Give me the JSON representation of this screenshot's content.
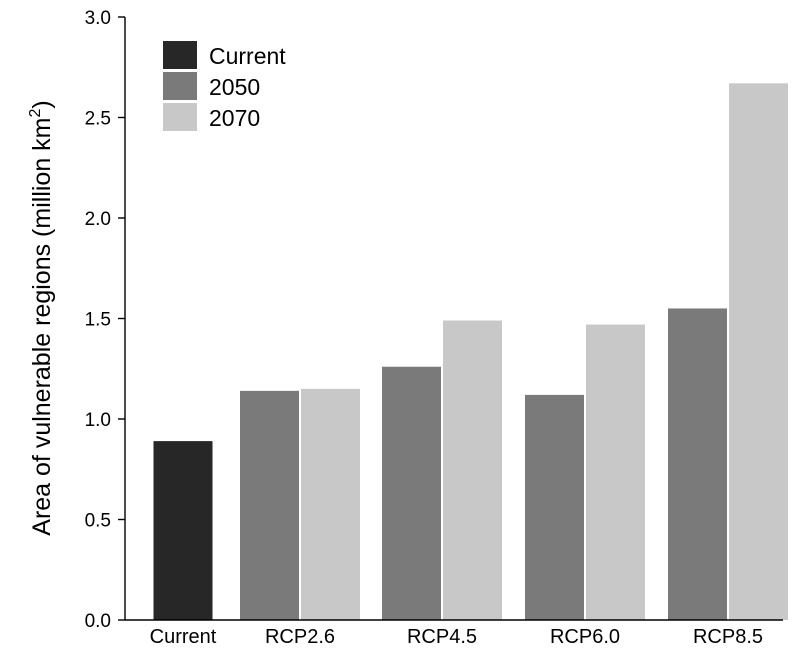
{
  "chart_data": {
    "type": "bar",
    "categories": [
      "Current",
      "RCP2.6",
      "RCP4.5",
      "RCP6.0",
      "RCP8.5"
    ],
    "series": [
      {
        "name": "Current",
        "color": "#272727",
        "values": [
          0.89,
          null,
          null,
          null,
          null
        ]
      },
      {
        "name": "2050",
        "color": "#7a7a7a",
        "values": [
          null,
          1.14,
          1.26,
          1.12,
          1.55
        ]
      },
      {
        "name": "2070",
        "color": "#c8c8c8",
        "values": [
          null,
          1.15,
          1.49,
          1.47,
          2.67
        ]
      }
    ],
    "ylabel": "Area of vulnerable regions (million km",
    "ylabel_sup": "2",
    "ylabel_end": ")",
    "xlabel": "",
    "ylim": [
      0,
      3.0
    ],
    "yticks": [
      "0.0",
      "0.5",
      "1.0",
      "1.5",
      "2.0",
      "2.5",
      "3.0"
    ],
    "legend_position": "top-left",
    "grid": false
  }
}
